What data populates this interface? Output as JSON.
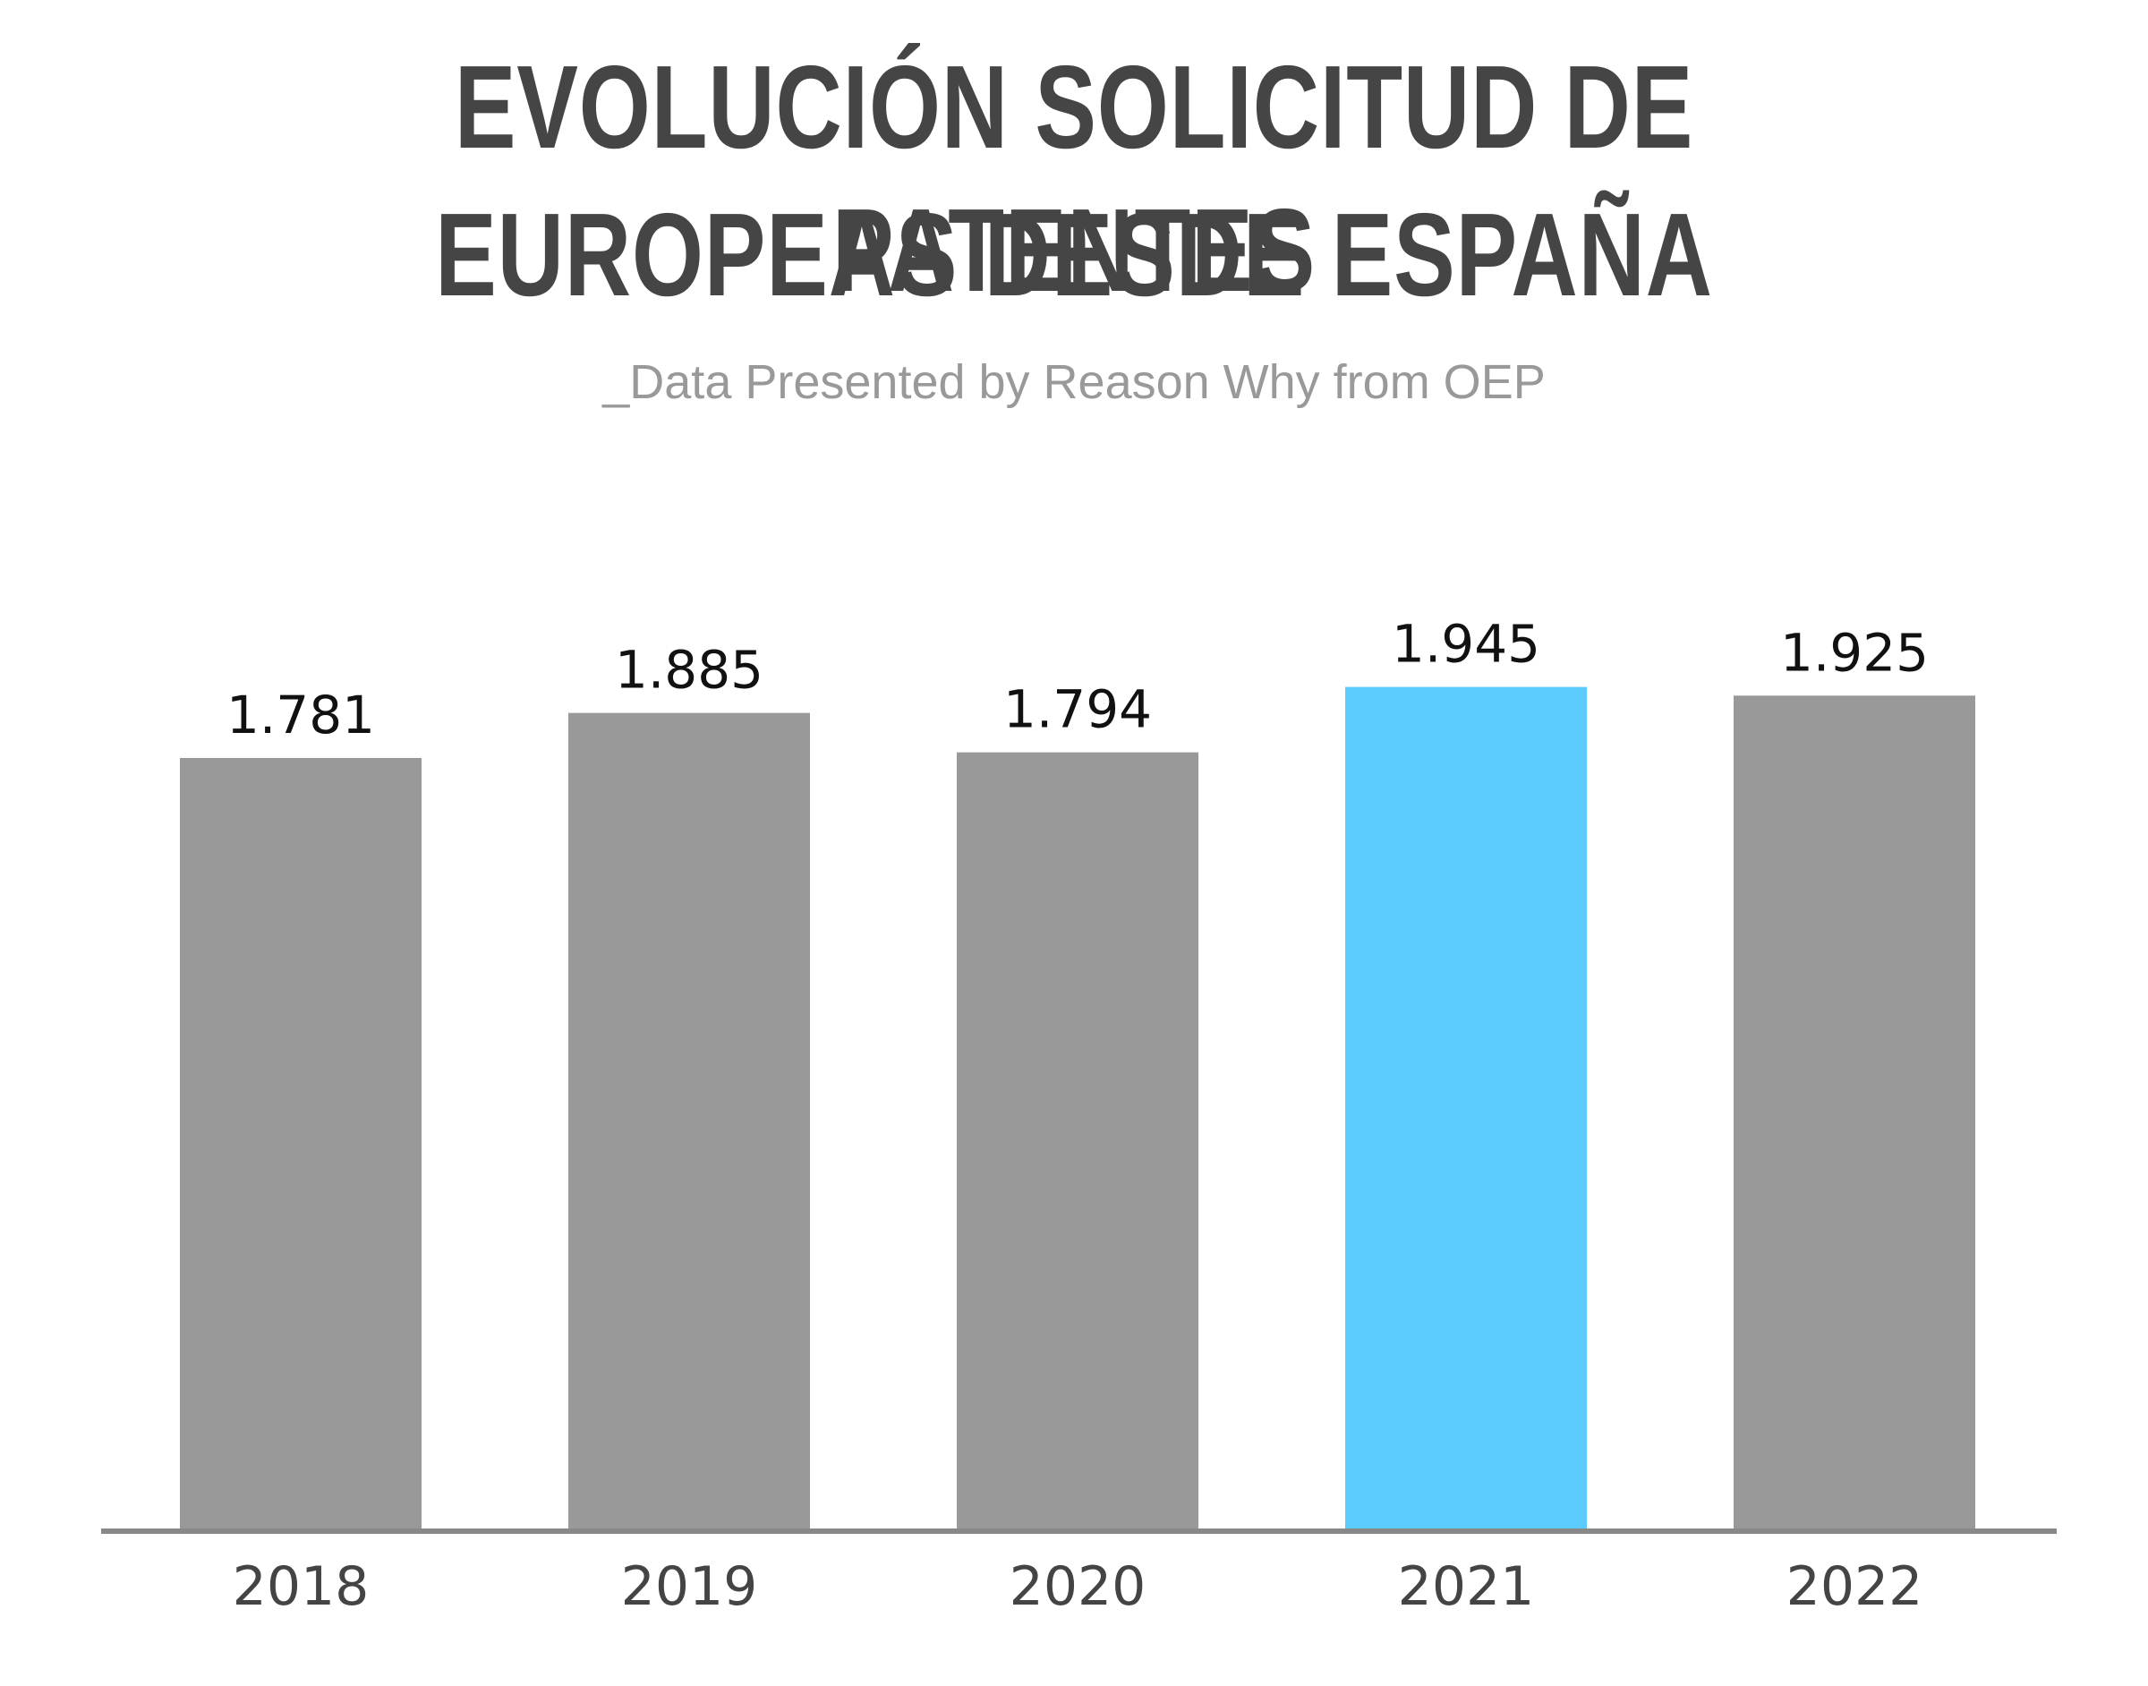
{
  "title_lines": [
    "EVOLUCIÓN SOLICITUD DE PATENTES",
    "EUROPEAS DESDE ESPAÑA"
  ],
  "subtitle": "_Data Presented by Reason Why from OEP",
  "colors": {
    "bar_default": "#999999",
    "bar_highlight": "#5ACBFC",
    "axis": "#888888",
    "title": "#454545"
  },
  "chart_data": {
    "type": "bar",
    "title": "EVOLUCIÓN SOLICITUD DE PATENTES EUROPEAS DESDE ESPAÑA",
    "subtitle": "_Data Presented by Reason Why from OEP",
    "categories": [
      "2018",
      "2019",
      "2020",
      "2021",
      "2022"
    ],
    "values": [
      1.781,
      1.885,
      1.794,
      1.945,
      1.925
    ],
    "value_labels": [
      "1.781",
      "1.885",
      "1.794",
      "1.945",
      "1.925"
    ],
    "highlight_category": "2021",
    "xlabel": "",
    "ylabel": "",
    "ylim": [
      0,
      2.1
    ],
    "grid": false,
    "legend": "none"
  }
}
